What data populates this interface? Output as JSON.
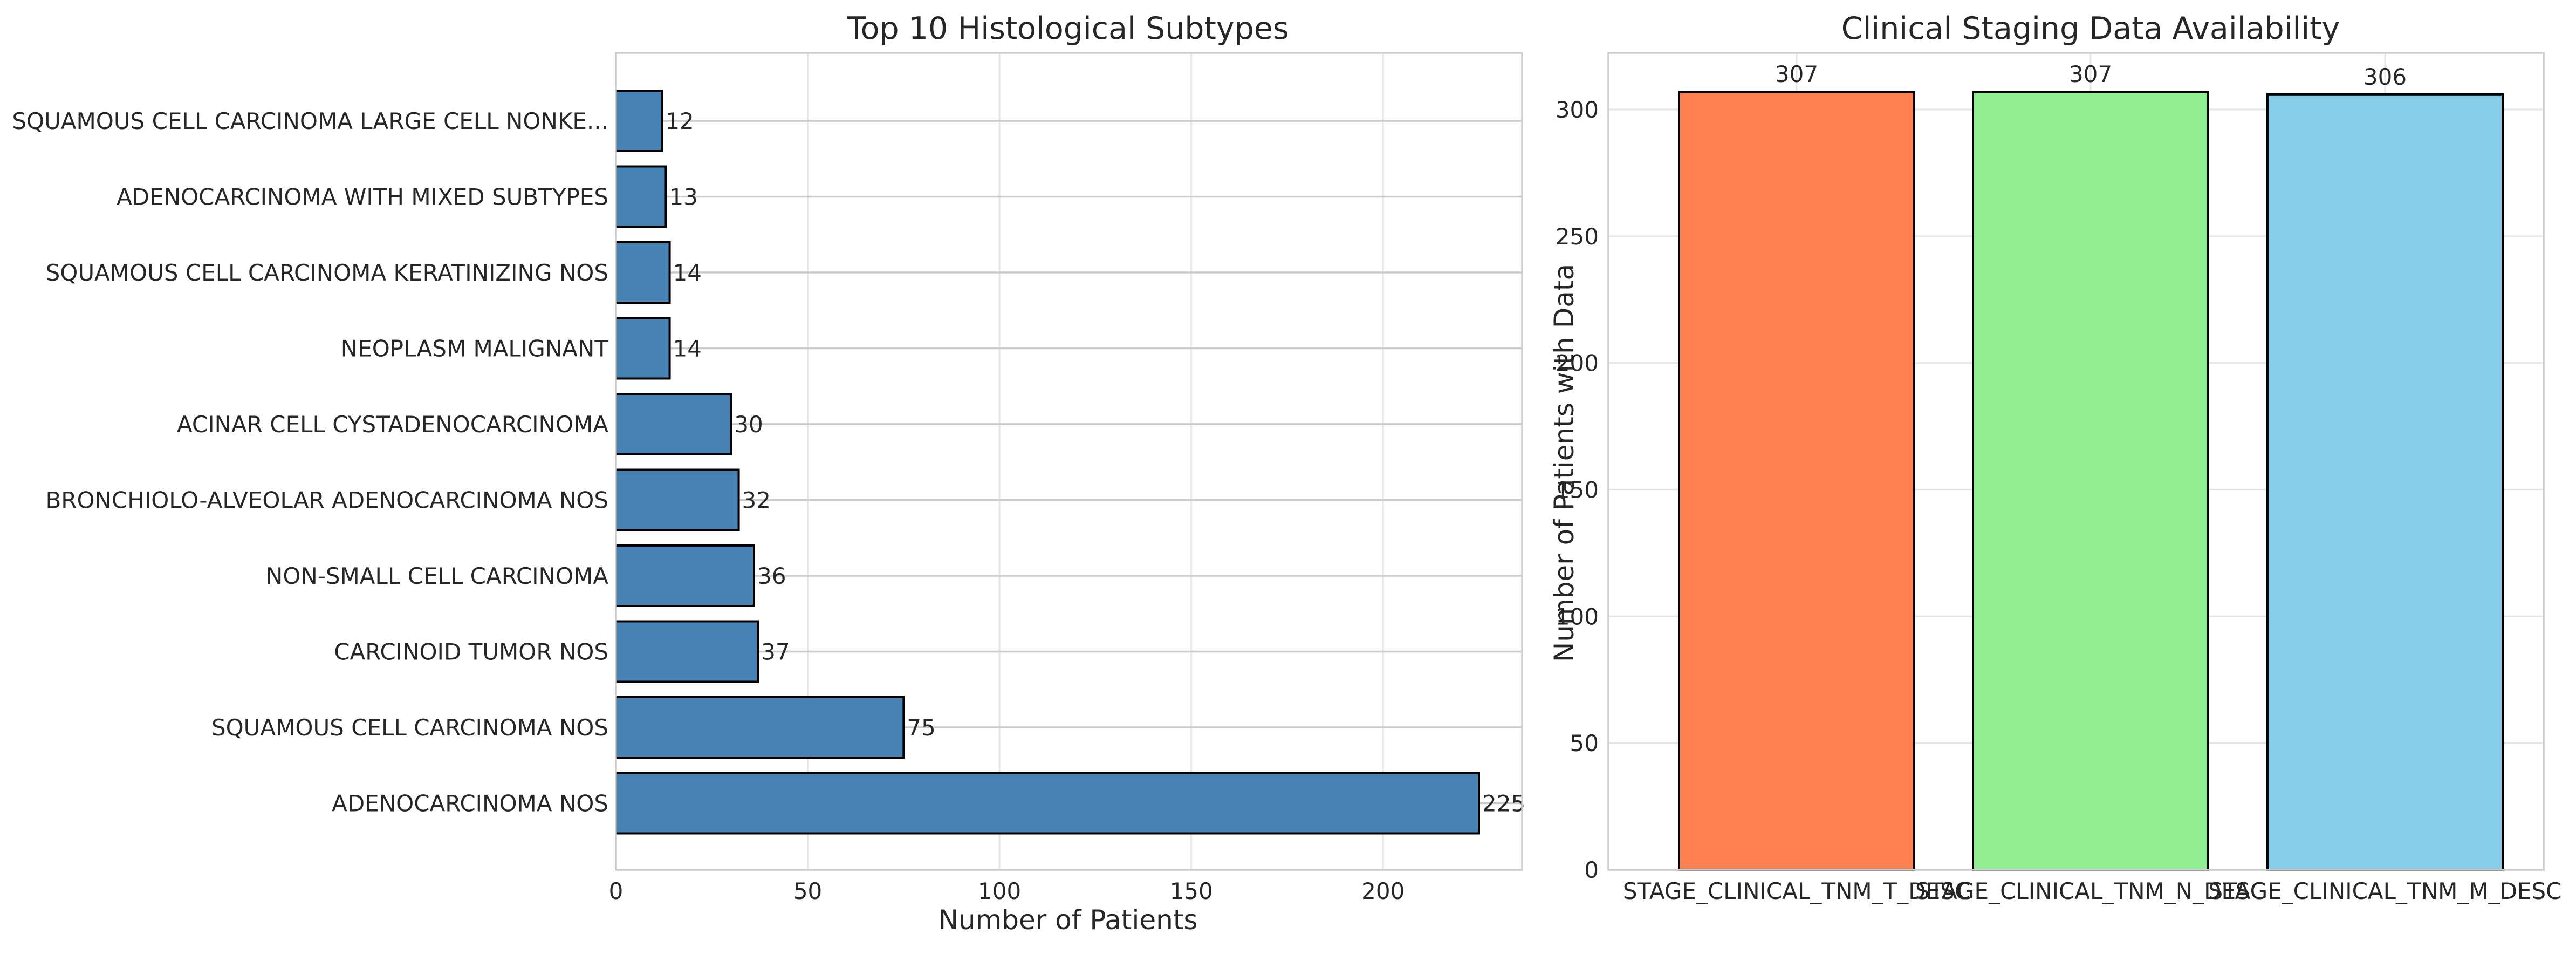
{
  "chart_data": [
    {
      "type": "bar",
      "orientation": "horizontal",
      "title": "Top 10 Histological Subtypes",
      "xlabel": "Number of Patients",
      "ylabel": "",
      "categories": [
        "SQUAMOUS CELL CARCINOMA LARGE CELL NONKE...",
        "ADENOCARCINOMA WITH MIXED SUBTYPES",
        "SQUAMOUS CELL CARCINOMA KERATINIZING NOS",
        "NEOPLASM MALIGNANT",
        "ACINAR CELL CYSTADENOCARCINOMA",
        "BRONCHIOLO-ALVEOLAR ADENOCARCINOMA NOS",
        "NON-SMALL CELL CARCINOMA",
        "CARCINOID TUMOR NOS",
        "SQUAMOUS CELL CARCINOMA NOS",
        "ADENOCARCINOMA NOS"
      ],
      "values": [
        12,
        13,
        14,
        14,
        30,
        32,
        36,
        37,
        75,
        225
      ],
      "xlim": [
        0,
        236.25
      ],
      "xticks": [
        0,
        50,
        100,
        150,
        200
      ],
      "grid": true,
      "bar_color": "#4682b4",
      "edge_color": "#000000"
    },
    {
      "type": "bar",
      "orientation": "vertical",
      "title": "Clinical Staging Data Availability",
      "xlabel": "",
      "ylabel": "Number of Patients with Data",
      "categories": [
        "STAGE_CLINICAL_TNM_T_DESC",
        "STAGE_CLINICAL_TNM_N_DESC",
        "STAGE_CLINICAL_TNM_M_DESC"
      ],
      "values": [
        307,
        307,
        306
      ],
      "ylim": [
        0,
        322.35
      ],
      "yticks": [
        0,
        50,
        100,
        150,
        200,
        250,
        300
      ],
      "grid": true,
      "bar_colors": [
        "#ff7f50",
        "#90ee90",
        "#87ceeb"
      ],
      "edge_color": "#000000"
    }
  ]
}
